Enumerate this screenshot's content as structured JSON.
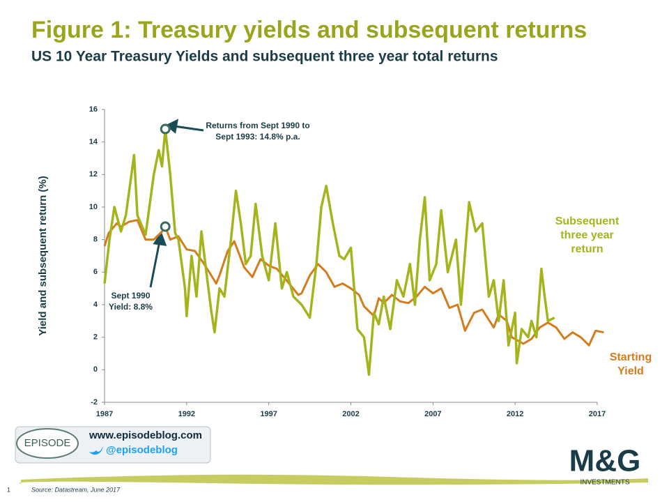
{
  "chart_data": {
    "type": "line",
    "title": "Figure 1: Treasury yields and subsequent returns",
    "subtitle": "US 10 Year Treasury Yields and subsequent three year total returns",
    "y_label": "Yield and subsequent return (%)",
    "xlim": [
      1987,
      2017
    ],
    "xticks": [
      1987,
      1992,
      1997,
      2002,
      2007,
      2012,
      2017
    ],
    "ylim": [
      -2,
      16
    ],
    "yticks": [
      -2,
      0,
      2,
      4,
      6,
      8,
      10,
      12,
      14,
      16
    ],
    "grid": false,
    "series": [
      {
        "name": "Subsequent three year return",
        "color": "#a4b41c",
        "x": [
          1987.0,
          1987.3,
          1987.6,
          1988.0,
          1988.3,
          1988.8,
          1989.0,
          1989.5,
          1990.0,
          1990.3,
          1990.5,
          1990.7,
          1991.0,
          1991.3,
          1991.5,
          1991.9,
          1992.0,
          1992.3,
          1992.6,
          1992.9,
          1993.2,
          1993.5,
          1993.7,
          1994.0,
          1994.3,
          1994.7,
          1995.0,
          1995.3,
          1995.6,
          1995.9,
          1996.2,
          1996.6,
          1997.0,
          1997.4,
          1997.8,
          1998.1,
          1998.5,
          1999.0,
          1999.5,
          1999.9,
          2000.2,
          2000.5,
          2000.9,
          2001.3,
          2001.6,
          2002.0,
          2002.4,
          2002.8,
          2003.1,
          2003.4,
          2003.7,
          2004.0,
          2004.4,
          2004.8,
          2005.2,
          2005.6,
          2005.9,
          2006.2,
          2006.5,
          2006.8,
          2007.2,
          2007.5,
          2007.9,
          2008.4,
          2008.7,
          2009.2,
          2009.6,
          2010.0,
          2010.4,
          2010.7,
          2011.0,
          2011.3,
          2011.6,
          2012.0,
          2012.1,
          2012.4,
          2012.8,
          2013.0,
          2013.3,
          2013.6,
          2013.8,
          2014.0,
          2014.4
        ],
        "values": [
          5.3,
          8.0,
          10.0,
          8.5,
          9.5,
          13.2,
          9.5,
          8.3,
          12.0,
          13.5,
          12.5,
          14.8,
          12.0,
          8.4,
          8.0,
          5.0,
          3.3,
          7.0,
          4.5,
          8.5,
          6.0,
          3.6,
          2.3,
          5.0,
          4.5,
          8.0,
          11.0,
          9.0,
          6.5,
          7.0,
          10.2,
          7.0,
          5.5,
          9.0,
          5.0,
          6.0,
          4.5,
          4.0,
          3.2,
          6.5,
          10.0,
          11.3,
          9.0,
          7.0,
          6.8,
          7.5,
          2.5,
          2.0,
          -0.3,
          3.5,
          2.8,
          4.5,
          2.5,
          5.5,
          4.5,
          6.5,
          4.0,
          8.0,
          10.6,
          5.5,
          6.5,
          9.8,
          6.0,
          8.0,
          4.0,
          10.3,
          8.5,
          9.0,
          4.5,
          5.5,
          3.0,
          5.5,
          1.5,
          3.5,
          0.4,
          2.5,
          2.0,
          3.0,
          2.0,
          6.2,
          4.5,
          3.0,
          3.2
        ]
      },
      {
        "name": "Starting Yield",
        "color": "#d47b1c",
        "x": [
          1987.0,
          1987.25,
          1987.75,
          1988.0,
          1988.5,
          1989.0,
          1989.5,
          1990.0,
          1990.5,
          1990.7,
          1991.0,
          1991.5,
          1992.0,
          1992.5,
          1993.0,
          1993.5,
          1993.8,
          1994.0,
          1994.5,
          1994.9,
          1995.5,
          1996.0,
          1996.5,
          1997.0,
          1997.5,
          1998.0,
          1998.8,
          1999.0,
          1999.5,
          2000.0,
          2000.5,
          2001.0,
          2001.5,
          2002.0,
          2002.5,
          2002.8,
          2003.4,
          2003.7,
          2004.0,
          2004.5,
          2005.0,
          2005.5,
          2006.0,
          2006.5,
          2007.0,
          2007.5,
          2008.0,
          2008.5,
          2008.95,
          2009.5,
          2010.0,
          2010.7,
          2011.0,
          2011.5,
          2011.8,
          2012.5,
          2013.0,
          2013.5,
          2014.0,
          2014.5,
          2015.0,
          2015.5,
          2016.0,
          2016.5,
          2016.9,
          2017.4
        ],
        "values": [
          7.6,
          8.4,
          9.0,
          8.8,
          9.1,
          9.2,
          8.0,
          8.0,
          8.5,
          8.8,
          8.0,
          8.2,
          7.4,
          7.3,
          6.6,
          5.8,
          5.3,
          5.8,
          7.3,
          7.9,
          6.3,
          5.7,
          6.8,
          6.4,
          6.2,
          5.6,
          4.6,
          4.7,
          5.8,
          6.5,
          6.0,
          5.1,
          5.3,
          5.0,
          4.6,
          3.9,
          3.3,
          4.4,
          4.1,
          4.6,
          4.2,
          4.1,
          4.5,
          5.1,
          4.7,
          5.0,
          3.8,
          4.0,
          2.4,
          3.5,
          3.7,
          2.6,
          3.4,
          3.0,
          2.0,
          1.6,
          1.9,
          2.6,
          2.9,
          2.6,
          1.9,
          2.3,
          2.0,
          1.5,
          2.4,
          2.3
        ]
      }
    ],
    "annotations": [
      {
        "text": "Returns from Sept 1990 to Sept 1993: 14.8% p.a.",
        "series": 0,
        "point": 11
      },
      {
        "text": "Sept 1990 Yield: 8.8%",
        "series": 1,
        "point": 9
      }
    ]
  },
  "footer": {
    "website": "www.episodeblog.com",
    "twitter": "@episodeblog",
    "logo": "EPISODE",
    "brand": "M&G",
    "brand_sub": "INVESTMENTS",
    "page": "1",
    "source": "Source: Datastream, June 2017"
  }
}
